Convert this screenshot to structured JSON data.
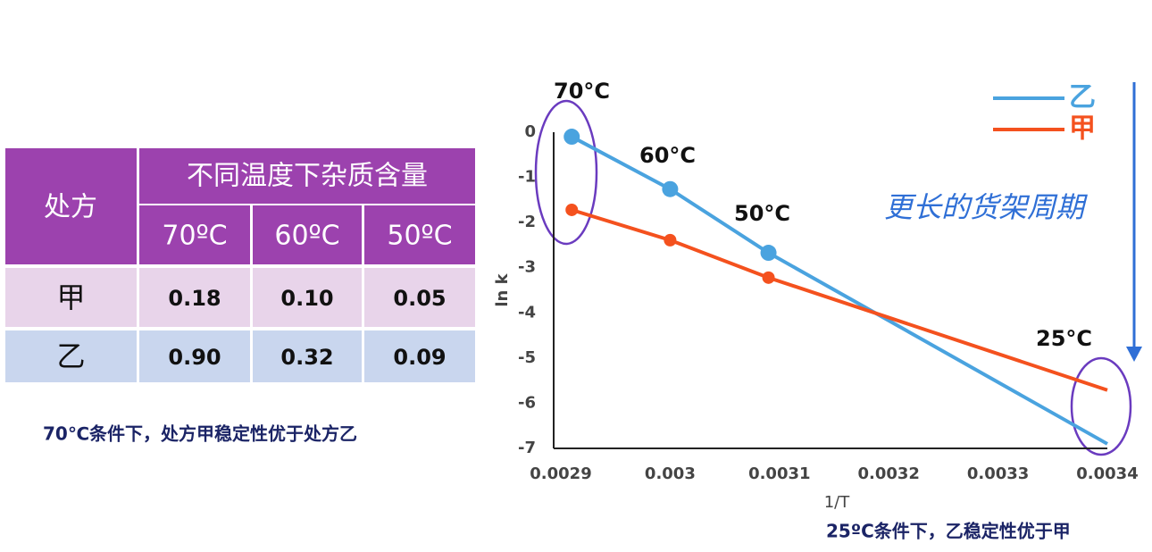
{
  "table": {
    "header": {
      "row_head": "处方",
      "group": "不同温度下杂质含量",
      "columns": [
        "70ºC",
        "60ºC",
        "50ºC"
      ]
    },
    "rows": [
      [
        "甲",
        "0.18",
        "0.10",
        "0.05"
      ],
      [
        "乙",
        "0.90",
        "0.32",
        "0.09"
      ]
    ]
  },
  "note_left": "70℃条件下，处方甲稳定性优于处方乙",
  "chart_data": {
    "type": "line",
    "x_label": "1/T",
    "y_label": "ln k",
    "x": [
      0.00291,
      0.003,
      0.00309,
      0.0034
    ],
    "series": [
      {
        "name": "乙",
        "color": "#4aa3df",
        "values": [
          -0.1,
          -1.26,
          -2.67,
          -6.9
        ],
        "markers": [
          true,
          true,
          true,
          false
        ]
      },
      {
        "name": "甲",
        "color": "#f4511e",
        "values": [
          -1.72,
          -2.39,
          -3.22,
          -5.71
        ],
        "markers": [
          true,
          true,
          true,
          false
        ]
      }
    ],
    "xlim": [
      0.0029,
      0.0034
    ],
    "ylim": [
      -7,
      0
    ],
    "xticks": [
      0.0029,
      0.003,
      0.0031,
      0.0032,
      0.0033,
      0.0034
    ],
    "yticks": [
      0,
      -1,
      -2,
      -3,
      -4,
      -5,
      -6,
      -7
    ],
    "legend": "upper right",
    "annotations": [
      "70°C",
      "60°C",
      "50°C",
      "25°C"
    ],
    "side_note": "更长的货架周期"
  },
  "note_right": "25ºC条件下，乙稳定性优于甲"
}
